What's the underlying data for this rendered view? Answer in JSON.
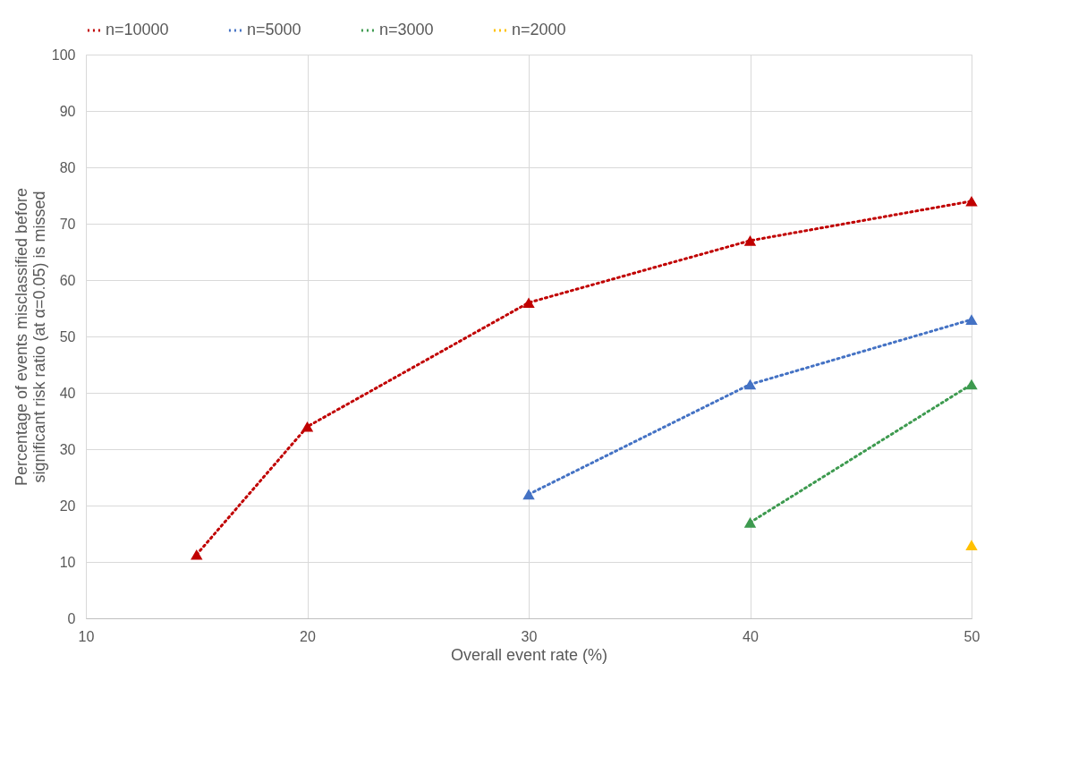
{
  "chart_data": {
    "type": "line",
    "xlabel": "Overall event rate (%)",
    "ylabel": "Percentage of events misclassified before significant risk ratio (at α=0.05) is missed",
    "xlim": [
      10,
      50
    ],
    "xticks": [
      10,
      20,
      30,
      40,
      50
    ],
    "ylim": [
      0,
      100
    ],
    "yticks": [
      0,
      10,
      20,
      30,
      40,
      50,
      60,
      70,
      80,
      90,
      100
    ],
    "grid": true,
    "legend": "top",
    "marker": "triangle",
    "line_style": "dotted",
    "series": [
      {
        "name": "n=10000",
        "color": "#c00000",
        "x": [
          15,
          20,
          30,
          40,
          50
        ],
        "values": [
          11.3,
          34,
          56,
          67,
          74
        ]
      },
      {
        "name": "n=5000",
        "color": "#4472c4",
        "x": [
          30,
          40,
          50
        ],
        "values": [
          22,
          41.5,
          53
        ]
      },
      {
        "name": "n=3000",
        "color": "#3d9a4f",
        "x": [
          40,
          50
        ],
        "values": [
          17,
          41.5
        ]
      },
      {
        "name": "n=2000",
        "color": "#ffc000",
        "x": [
          50
        ],
        "values": [
          13
        ]
      }
    ]
  }
}
